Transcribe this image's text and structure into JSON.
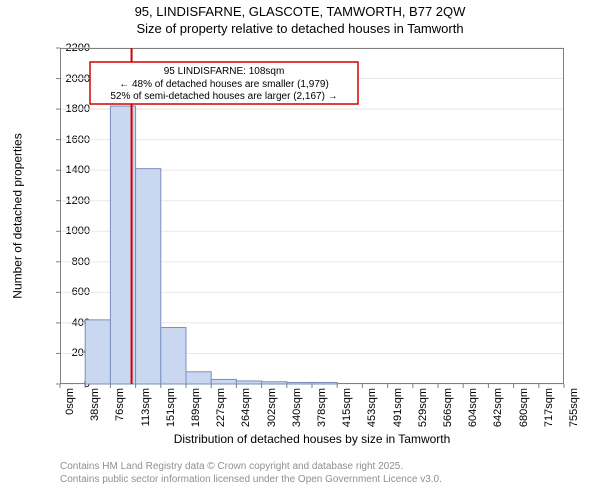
{
  "chart": {
    "type": "histogram",
    "title1": "95, LINDISFARNE, GLASCOTE, TAMWORTH, B77 2QW",
    "title2": "Size of property relative to detached houses in Tamworth",
    "xlabel": "Distribution of detached houses by size in Tamworth",
    "ylabel": "Number of detached properties",
    "background_color": "#ffffff",
    "grid_color": "#e8e8e8",
    "axis_color": "#808080",
    "bar_fill": "#c9d7f0",
    "bar_stroke": "#7a8fbf",
    "marker_color": "#d40000",
    "annotation_border": "#d40000",
    "ylim": [
      0,
      2200
    ],
    "yticks": [
      0,
      200,
      400,
      600,
      800,
      1000,
      1200,
      1400,
      1600,
      1800,
      2000,
      2200
    ],
    "xtick_labels": [
      "0sqm",
      "38sqm",
      "76sqm",
      "113sqm",
      "151sqm",
      "189sqm",
      "227sqm",
      "264sqm",
      "302sqm",
      "340sqm",
      "378sqm",
      "415sqm",
      "453sqm",
      "491sqm",
      "529sqm",
      "566sqm",
      "604sqm",
      "642sqm",
      "680sqm",
      "717sqm",
      "755sqm"
    ],
    "bars": [
      {
        "idx": 1,
        "value": 420
      },
      {
        "idx": 2,
        "value": 1820
      },
      {
        "idx": 3,
        "value": 1410
      },
      {
        "idx": 4,
        "value": 370
      },
      {
        "idx": 5,
        "value": 80
      },
      {
        "idx": 6,
        "value": 30
      },
      {
        "idx": 7,
        "value": 20
      },
      {
        "idx": 8,
        "value": 15
      },
      {
        "idx": 9,
        "value": 10
      },
      {
        "idx": 10,
        "value": 10
      }
    ],
    "marker_at_category": 2.84,
    "annotation": {
      "line1": "95 LINDISFARNE: 108sqm",
      "line2": "← 48% of detached houses are smaller (1,979)",
      "line3": "52% of semi-detached houses are larger (2,167) →"
    },
    "attribution1": "Contains HM Land Registry data © Crown copyright and database right 2025.",
    "attribution2": "Contains public sector information licensed under the Open Government Licence v3.0.",
    "title_fontsize": 13,
    "label_fontsize": 12,
    "tick_fontsize": 11,
    "annot_fontsize": 10,
    "attrib_fontsize": 10,
    "attrib_color": "#909090"
  }
}
